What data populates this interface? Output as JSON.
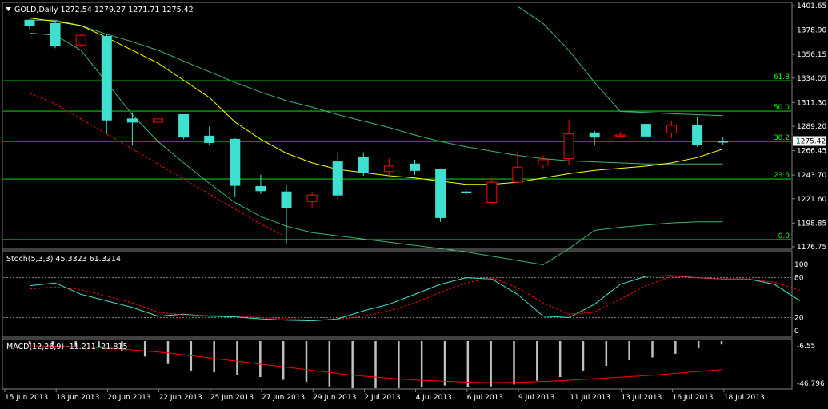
{
  "symbol_line": "GOLD,Daily  1272.54 1279.27 1271.71 1275.42",
  "colors": {
    "background": "#000000",
    "border": "#808080",
    "bull_body": "#40e0d0",
    "bear_body": "#000000",
    "bear_border": "#ff0000",
    "wick": "#40e0d0",
    "fib_line": "#00ff00",
    "ma_yellow": "#ffff00",
    "envelope": "#3cb371",
    "sar_red": "#ff0000",
    "stoch_main": "#40e0d0",
    "stoch_signal": "#ff0000",
    "macd_hist": "#c0c0c0",
    "macd_signal": "#ff0000",
    "axis_text": "#ffffff"
  },
  "price_axis": {
    "labels": [
      "1401.65",
      "1378.90",
      "1356.15",
      "1334.05",
      "1311.30",
      "1289.20",
      "1266.45",
      "1243.70",
      "1221.60",
      "1198.85",
      "1176.75"
    ],
    "current_price": "1275.42"
  },
  "fib_levels": [
    {
      "label": "61.8",
      "price": 1331.6
    },
    {
      "label": "50.0",
      "price": 1303.3
    },
    {
      "label": "38.2",
      "price": 1275.0
    },
    {
      "label": "23.6",
      "price": 1240.0
    },
    {
      "label": "0.0",
      "price": 1183.5
    }
  ],
  "stoch": {
    "label": "Stoch(5,3,3) 45.3323 61.3214",
    "axis_labels": [
      "100",
      "80",
      "20",
      "0"
    ],
    "main": [
      68,
      72,
      55,
      45,
      35,
      22,
      25,
      22,
      21,
      18,
      16,
      15,
      18,
      30,
      40,
      55,
      70,
      80,
      78,
      55,
      22,
      20,
      40,
      70,
      82,
      83,
      80,
      78,
      78,
      70,
      45
    ],
    "signal": [
      63,
      66,
      62,
      52,
      42,
      28,
      24,
      23,
      22,
      20,
      18,
      16,
      17,
      22,
      30,
      42,
      58,
      72,
      80,
      65,
      42,
      25,
      28,
      48,
      68,
      82,
      80,
      78,
      78,
      73,
      61
    ]
  },
  "macd": {
    "label": "MACD(12,26,9) -11.211 -21.815",
    "axis_labels": [
      "-6.55",
      "-46.796"
    ],
    "hist": [
      -5,
      -6,
      -7,
      -9,
      -12,
      -18,
      -26,
      -33,
      -35,
      -38,
      -40,
      -43,
      -45,
      -50,
      -52,
      -53,
      -53,
      -51,
      -49,
      -51,
      -50,
      -48,
      -44,
      -40,
      -33,
      -28,
      -22,
      -19,
      -15,
      -9,
      -5
    ],
    "signal": [
      -6.5,
      -7.0,
      -7.5,
      -8.5,
      -10,
      -12,
      -14,
      -17,
      -20,
      -23,
      -26,
      -29,
      -32,
      -35,
      -38,
      -40,
      -42,
      -43.5,
      -44.5,
      -45.5,
      -46,
      -45.8,
      -45,
      -44,
      -42.5,
      -41,
      -39.5,
      -38,
      -36,
      -34,
      -32
    ]
  },
  "chart_data": {
    "type": "candlestick",
    "title": "GOLD,Daily",
    "ylim": [
      1176.75,
      1401.65
    ],
    "date_labels": [
      "15 Jun 2013",
      "18 Jun 2013",
      "20 Jun 2013",
      "22 Jun 2013",
      "25 Jun 2013",
      "27 Jun 2013",
      "29 Jun 2013",
      "2 Jul 2013",
      "4 Jul 2013",
      "6 Jul 2013",
      "9 Jul 2013",
      "11 Jul 2013",
      "13 Jul 2013",
      "16 Jul 2013",
      "18 Jul 2013"
    ],
    "candles": [
      {
        "o": 1383,
        "h": 1389,
        "l": 1380,
        "c": 1388
      },
      {
        "o": 1364,
        "h": 1386,
        "l": 1362,
        "c": 1385
      },
      {
        "o": 1374,
        "h": 1375,
        "l": 1363,
        "c": 1365
      },
      {
        "o": 1295,
        "h": 1375,
        "l": 1282,
        "c": 1373
      },
      {
        "o": 1293,
        "h": 1302,
        "l": 1271,
        "c": 1296
      },
      {
        "o": 1296,
        "h": 1299,
        "l": 1287,
        "c": 1293
      },
      {
        "o": 1279,
        "h": 1300,
        "l": 1277,
        "c": 1300
      },
      {
        "o": 1274,
        "h": 1289,
        "l": 1272,
        "c": 1280
      },
      {
        "o": 1234,
        "h": 1278,
        "l": 1223,
        "c": 1277
      },
      {
        "o": 1229,
        "h": 1244,
        "l": 1226,
        "c": 1233
      },
      {
        "o": 1213,
        "h": 1234,
        "l": 1180,
        "c": 1228
      },
      {
        "o": 1225,
        "h": 1228,
        "l": 1213,
        "c": 1219
      },
      {
        "o": 1225,
        "h": 1264,
        "l": 1221,
        "c": 1256
      },
      {
        "o": 1246,
        "h": 1265,
        "l": 1243,
        "c": 1260
      },
      {
        "o": 1252,
        "h": 1259,
        "l": 1241,
        "c": 1247
      },
      {
        "o": 1248,
        "h": 1258,
        "l": 1244,
        "c": 1254
      },
      {
        "o": 1204,
        "h": 1250,
        "l": 1200,
        "c": 1249
      },
      {
        "o": 1228,
        "h": 1231,
        "l": 1225,
        "c": 1228
      },
      {
        "o": 1237,
        "h": 1241,
        "l": 1216,
        "c": 1218
      },
      {
        "o": 1251,
        "h": 1266,
        "l": 1235,
        "c": 1237
      },
      {
        "o": 1258,
        "h": 1262,
        "l": 1250,
        "c": 1253
      },
      {
        "o": 1282,
        "h": 1295,
        "l": 1253,
        "c": 1259
      },
      {
        "o": 1279,
        "h": 1285,
        "l": 1271,
        "c": 1283
      },
      {
        "o": 1281,
        "h": 1284,
        "l": 1279,
        "c": 1280
      },
      {
        "o": 1280,
        "h": 1292,
        "l": 1276,
        "c": 1291
      },
      {
        "o": 1290,
        "h": 1294,
        "l": 1278,
        "c": 1283
      },
      {
        "o": 1272,
        "h": 1298,
        "l": 1270,
        "c": 1290
      },
      {
        "o": 1275,
        "h": 1279,
        "l": 1272,
        "c": 1275
      }
    ],
    "ma_yellow": [
      1390,
      1387,
      1383,
      1372,
      1360,
      1348,
      1332,
      1316,
      1293,
      1277,
      1264,
      1255,
      1249,
      1246,
      1243,
      1241,
      1238,
      1235,
      1235,
      1237,
      1241,
      1245,
      1248,
      1250,
      1252,
      1255,
      1260,
      1268
    ],
    "envelope_upper": [
      1388,
      1388,
      1383,
      1375,
      1368,
      1360,
      1350,
      1340,
      1330,
      1321,
      1313,
      1307,
      1300,
      1294,
      1288,
      1281,
      1275,
      1270,
      1266,
      1262,
      1259,
      1257,
      1256,
      1255,
      1254,
      1254,
      1254,
      1254
    ],
    "envelope_lower": [
      1376,
      1374,
      1360,
      1330,
      1300,
      1275,
      1255,
      1236,
      1218,
      1205,
      1196,
      1190,
      1187,
      1184,
      1181,
      1178,
      1175,
      1172,
      1168,
      1164,
      1160,
      1175,
      1192,
      1195,
      1197,
      1199,
      1200,
      1200
    ],
    "band_upper": [
      null,
      null,
      null,
      null,
      null,
      null,
      null,
      null,
      null,
      null,
      null,
      null,
      null,
      null,
      null,
      null,
      null,
      null,
      null,
      1401,
      1385,
      1360,
      1330,
      1303,
      1302,
      1301,
      1300,
      1299
    ],
    "sar_red": [
      1320,
      1310,
      1296,
      1282,
      1268,
      1254,
      1240,
      1226,
      1212,
      1198,
      1186
    ]
  }
}
